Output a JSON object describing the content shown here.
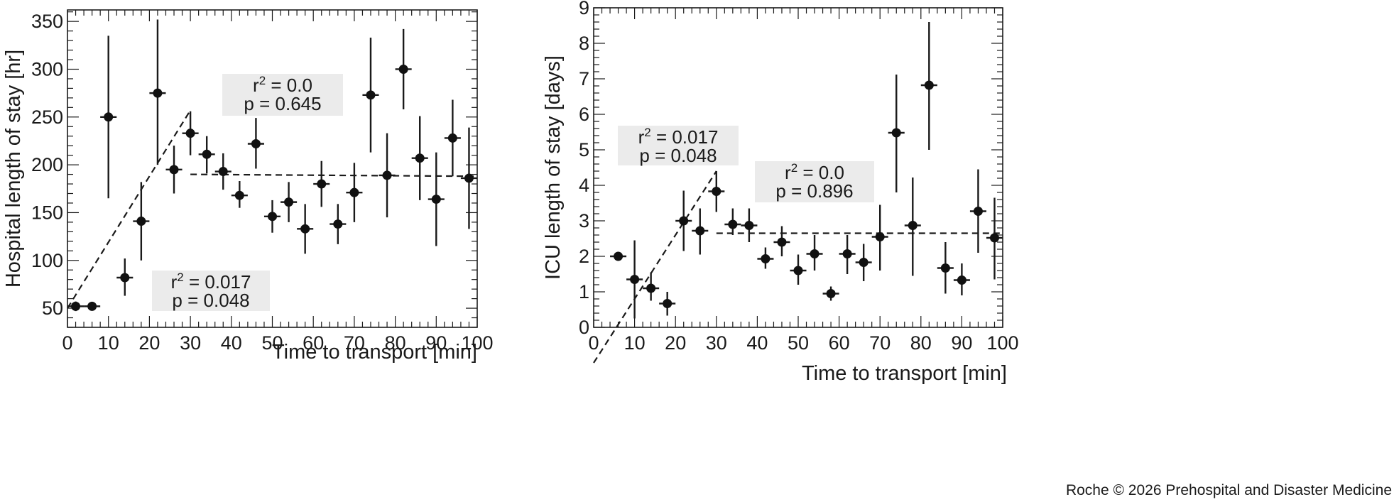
{
  "credit": "Roche © 2026 Prehospital and Disaster Medicine",
  "chart_data": [
    {
      "type": "scatter",
      "xlabel": "Time to transport [min]",
      "ylabel": "Hospital length of stay [hr]",
      "xlim": [
        0,
        100
      ],
      "ylim": [
        30,
        362
      ],
      "xticks": [
        "0",
        "10",
        "20",
        "30",
        "40",
        "50",
        "60",
        "70",
        "80",
        "90",
        "100"
      ],
      "yticks": [
        "50",
        "100",
        "150",
        "200",
        "250",
        "300",
        "350"
      ],
      "grid": false,
      "x": [
        2,
        6,
        10,
        14,
        18,
        22,
        26,
        30,
        34,
        38,
        42,
        46,
        50,
        54,
        58,
        62,
        66,
        70,
        74,
        78,
        82,
        86,
        90,
        94,
        98
      ],
      "y": [
        52,
        52,
        250,
        82,
        141,
        275,
        195,
        233,
        211,
        193,
        168,
        222,
        146,
        161,
        133,
        180,
        138,
        171,
        273,
        189,
        300,
        207,
        164,
        228,
        186
      ],
      "y_low": [
        47,
        48,
        165,
        63,
        100,
        200,
        170,
        210,
        191,
        174,
        155,
        196,
        129,
        140,
        107,
        156,
        117,
        140,
        213,
        145,
        258,
        163,
        115,
        188,
        133
      ],
      "y_high": [
        57,
        56,
        335,
        102,
        182,
        352,
        220,
        256,
        230,
        212,
        183,
        249,
        163,
        182,
        159,
        204,
        159,
        202,
        333,
        233,
        342,
        251,
        213,
        268,
        239
      ],
      "fits": [
        {
          "x": [
            0,
            30
          ],
          "y": [
            50,
            257
          ],
          "label_r2": "0.017",
          "label_p": "p = 0.048"
        },
        {
          "x": [
            30,
            100
          ],
          "y": [
            190,
            188
          ],
          "label_r2": "0.0",
          "label_p": "p = 0.645"
        }
      ]
    },
    {
      "type": "scatter",
      "xlabel": "Time to transport [min]",
      "ylabel": "ICU length of stay [days]",
      "xlim": [
        0,
        100
      ],
      "ylim": [
        0,
        9
      ],
      "xticks": [
        "0",
        "10",
        "20",
        "30",
        "40",
        "50",
        "60",
        "70",
        "80",
        "90",
        "100"
      ],
      "yticks": [
        "0",
        "1",
        "2",
        "3",
        "4",
        "5",
        "6",
        "7",
        "8",
        "9"
      ],
      "grid": false,
      "x": [
        6,
        10,
        14,
        18,
        22,
        26,
        30,
        34,
        38,
        42,
        46,
        50,
        54,
        58,
        62,
        66,
        70,
        74,
        78,
        82,
        86,
        90,
        94,
        98
      ],
      "y": [
        2.0,
        1.35,
        1.1,
        0.67,
        3.0,
        2.72,
        3.83,
        2.9,
        2.87,
        1.93,
        2.4,
        1.6,
        2.07,
        0.95,
        2.07,
        1.83,
        2.55,
        5.48,
        2.87,
        6.82,
        1.67,
        1.33,
        3.27,
        2.52
      ],
      "y_low": [
        2.0,
        0.25,
        0.75,
        0.33,
        2.15,
        2.05,
        3.25,
        2.6,
        2.4,
        1.65,
        2.0,
        1.2,
        1.6,
        0.75,
        1.5,
        1.3,
        1.6,
        3.8,
        1.45,
        5.0,
        0.95,
        0.9,
        2.1,
        1.35
      ],
      "y_high": [
        2.0,
        2.45,
        1.55,
        1.0,
        3.85,
        3.35,
        4.4,
        3.35,
        3.35,
        2.25,
        2.85,
        2.05,
        2.6,
        1.15,
        2.6,
        2.35,
        3.45,
        7.12,
        4.22,
        8.6,
        2.4,
        1.8,
        4.45,
        3.65
      ],
      "fits": [
        {
          "x": [
            0,
            30
          ],
          "y": [
            -1.0,
            4.4
          ],
          "label_r2": "0.017",
          "label_p": "p = 0.048"
        },
        {
          "x": [
            30,
            100
          ],
          "y": [
            2.65,
            2.65
          ],
          "label_r2": "0.0",
          "label_p": "p = 0.896"
        }
      ]
    }
  ]
}
